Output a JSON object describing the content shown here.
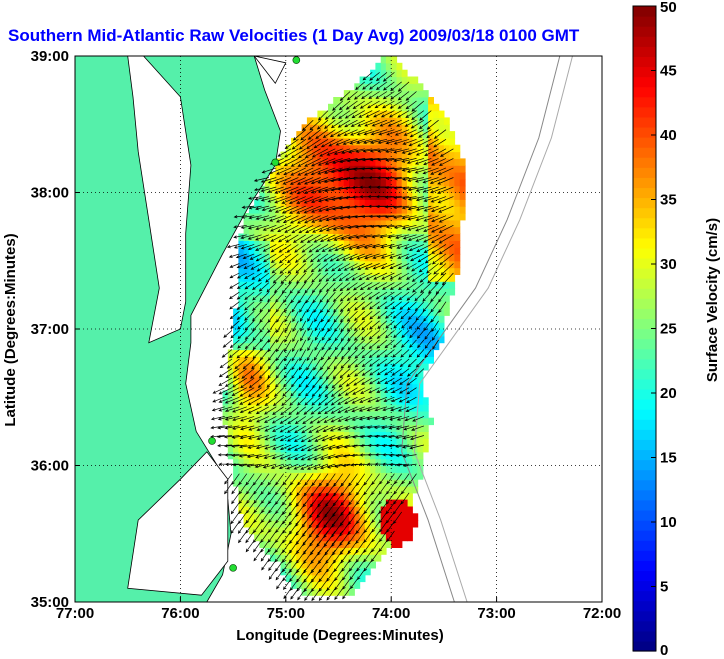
{
  "chart_data": {
    "type": "heatmap",
    "title": "Southern Mid-Atlantic Raw Velocities (1 Day Avg) 2009/03/18 0100 GMT",
    "xlabel": "Longitude (Degrees:Minutes)",
    "ylabel": "Latitude (Degrees:Minutes)",
    "xlim": [
      -77,
      -72
    ],
    "ylim": [
      35,
      39
    ],
    "x_ticks": [
      {
        "value": -77,
        "label": "77:00"
      },
      {
        "value": -76,
        "label": "76:00"
      },
      {
        "value": -75,
        "label": "75:00"
      },
      {
        "value": -74,
        "label": "74:00"
      },
      {
        "value": -73,
        "label": "73:00"
      },
      {
        "value": -72,
        "label": "72:00"
      }
    ],
    "y_ticks": [
      {
        "value": 35,
        "label": "35:00"
      },
      {
        "value": 36,
        "label": "36:00"
      },
      {
        "value": 37,
        "label": "37:00"
      },
      {
        "value": 38,
        "label": "38:00"
      },
      {
        "value": 39,
        "label": "39:00"
      }
    ],
    "grid": true,
    "colorbar": {
      "label": "Surface Velocity (cm/s)",
      "min": 0,
      "max": 50,
      "ticks": [
        {
          "value": 0,
          "label": "0"
        },
        {
          "value": 5,
          "label": "5"
        },
        {
          "value": 10,
          "label": "10"
        },
        {
          "value": 15,
          "label": "15"
        },
        {
          "value": 20,
          "label": "20"
        },
        {
          "value": 25,
          "label": "25"
        },
        {
          "value": 30,
          "label": "30"
        },
        {
          "value": 35,
          "label": "35"
        },
        {
          "value": 40,
          "label": "40"
        },
        {
          "value": 45,
          "label": "45"
        },
        {
          "value": 50,
          "label": "50"
        }
      ],
      "colormap": "jet"
    },
    "land_color": "#55f0aa",
    "stations": [
      {
        "lon": -74.9,
        "lat": 38.97
      },
      {
        "lon": -75.1,
        "lat": 38.22
      },
      {
        "lon": -75.7,
        "lat": 36.18
      },
      {
        "lon": -75.5,
        "lat": 35.25
      }
    ],
    "velocity_field_summary": {
      "grid_step_deg": 0.05,
      "speed_regions": [
        {
          "description": "coverage envelope",
          "lon_range": [
            -75.7,
            -73.3
          ],
          "lat_range": [
            35.1,
            38.95
          ]
        },
        {
          "description": "offshore Delaware/Maryland",
          "center": [
            -74.4,
            38.1
          ],
          "speed_cm_s": 45
        },
        {
          "description": "central shelf band",
          "center": [
            -74.8,
            37.0
          ],
          "speed_cm_s": 28
        },
        {
          "description": "Cape Hatteras region",
          "center": [
            -74.6,
            35.6
          ],
          "speed_cm_s": 45
        }
      ],
      "predominant_direction": "southwest"
    }
  }
}
